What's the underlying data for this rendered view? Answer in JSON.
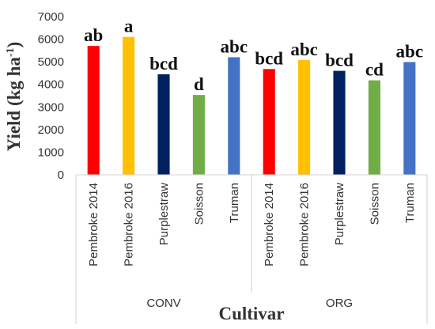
{
  "chart_data": {
    "type": "bar",
    "xlabel": "Cultivar",
    "ylabel_main": "Yield (kg ha",
    "ylabel_sup": "-1",
    "ylabel_close": ")",
    "ylim": [
      0,
      7000
    ],
    "yticks": [
      0,
      1000,
      2000,
      3000,
      4000,
      5000,
      6000,
      7000
    ],
    "grid": false,
    "groups": [
      {
        "name": "CONV",
        "categories": [
          "Pembroke 2014",
          "Pembroke 2016",
          "Purplestraw",
          "Soisson",
          "Truman"
        ],
        "values": [
          5700,
          6100,
          4450,
          3530,
          5200
        ],
        "letters": [
          "ab",
          "a",
          "bcd",
          "d",
          "abc"
        ]
      },
      {
        "name": "ORG",
        "categories": [
          "Pembroke 2014",
          "Pembroke 2016",
          "Purplestraw",
          "Soisson",
          "Truman"
        ],
        "values": [
          4680,
          5080,
          4600,
          4180,
          4990
        ],
        "letters": [
          "bcd",
          "abc",
          "bcd",
          "cd",
          "abc"
        ]
      }
    ],
    "colors": {
      "Pembroke 2014": "#FF0000",
      "Pembroke 2016": "#FFC000",
      "Purplestraw": "#002060",
      "Soisson": "#70AD47",
      "Truman": "#4472C4"
    }
  }
}
